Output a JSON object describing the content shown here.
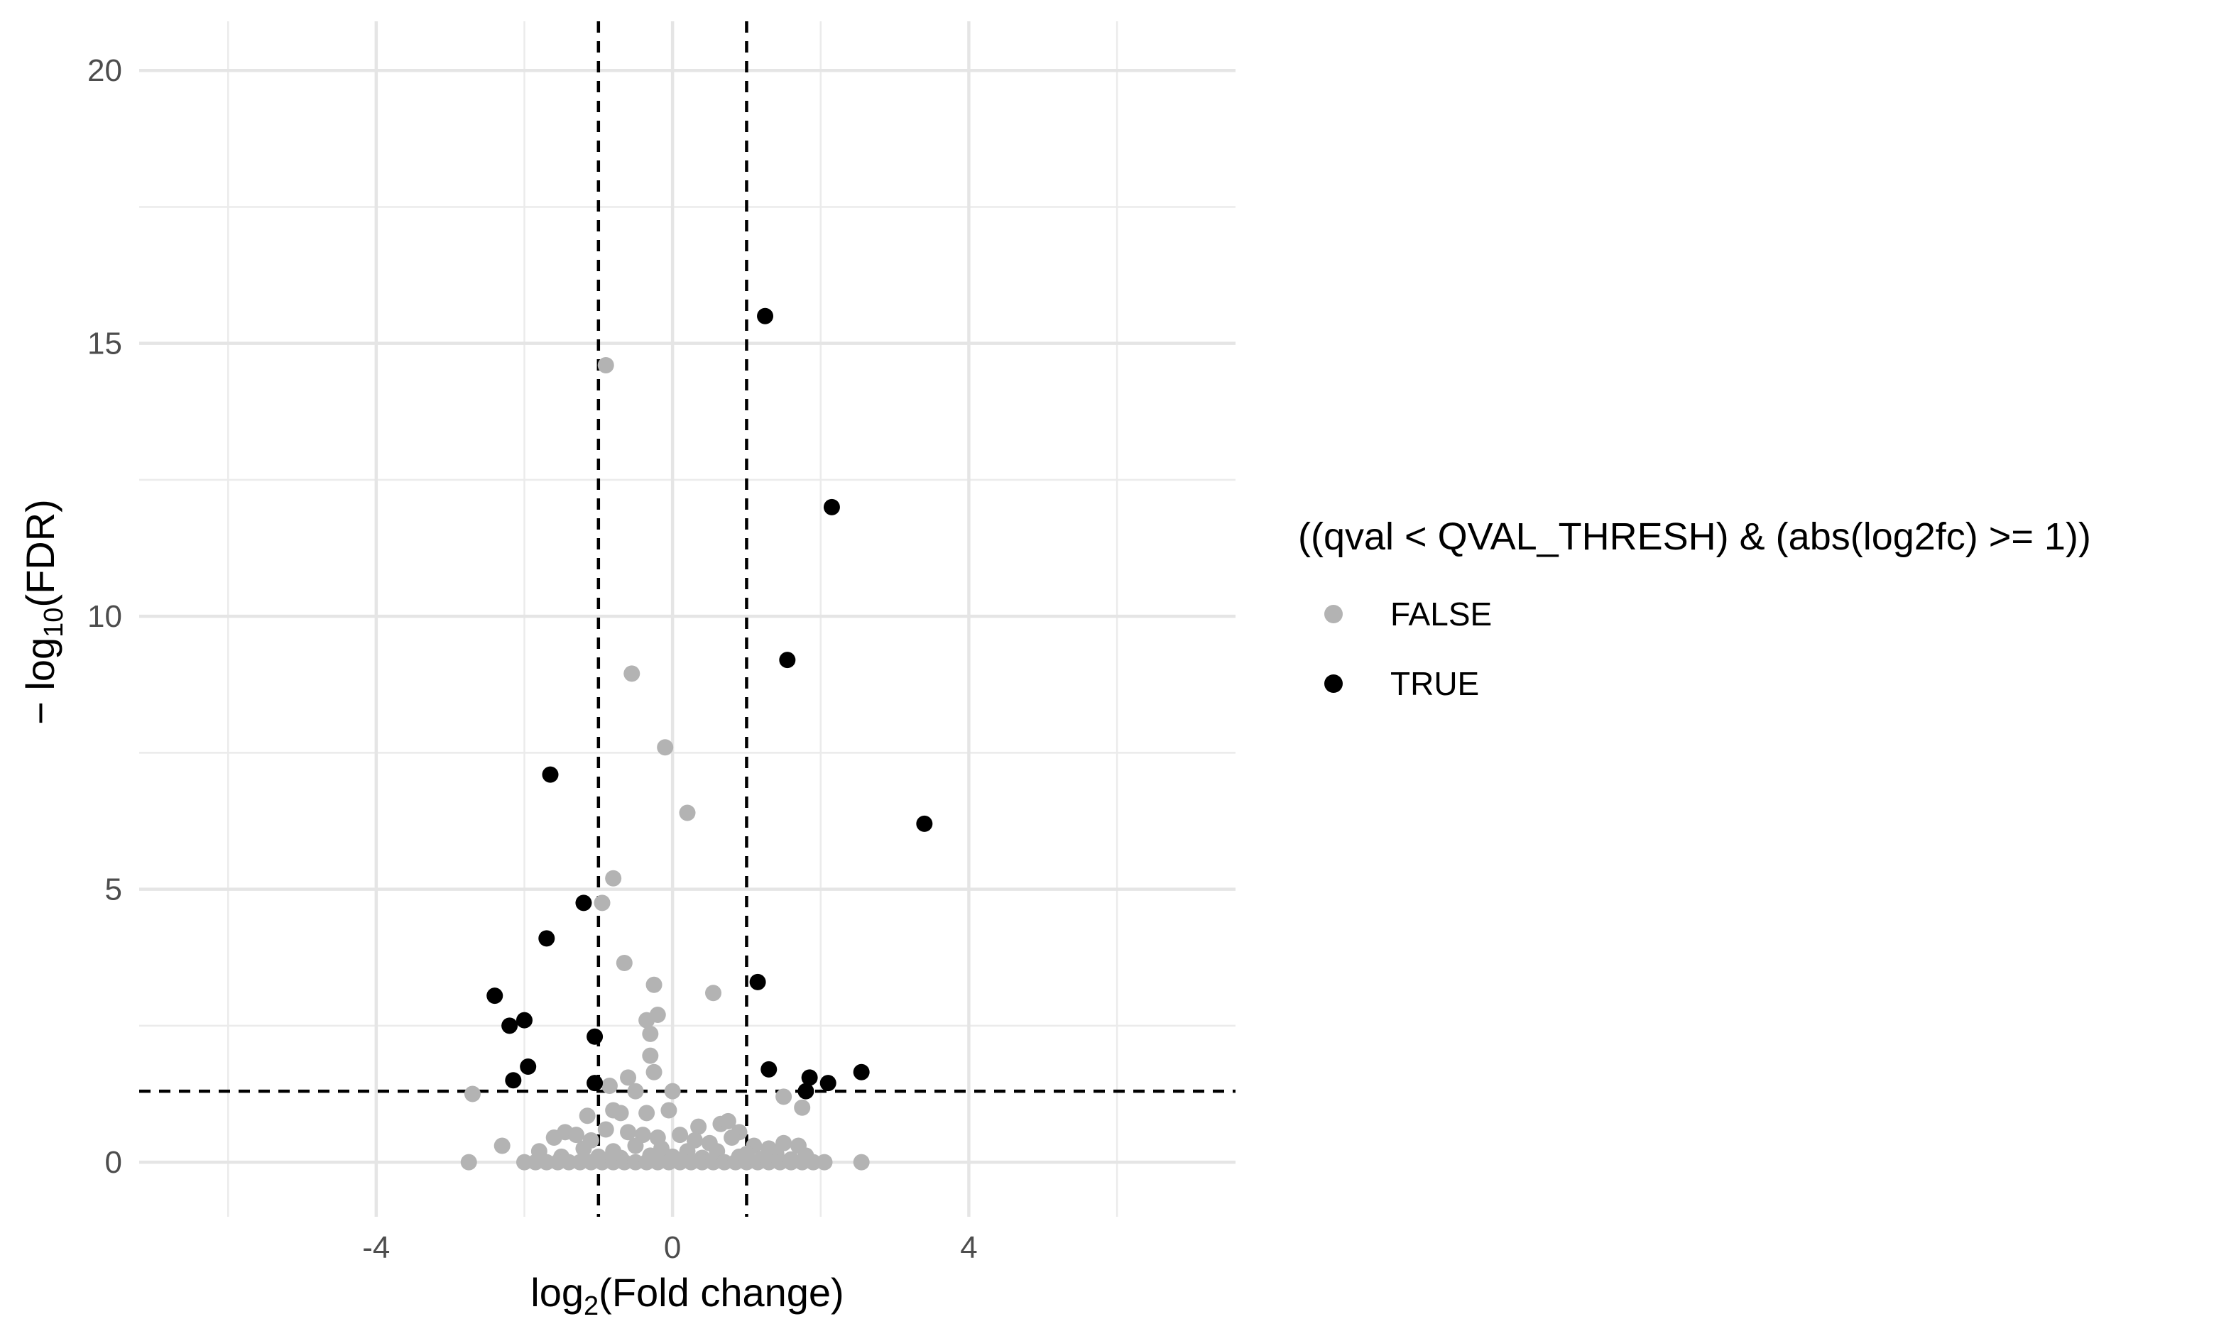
{
  "chart_data": {
    "type": "scatter",
    "xlabel": {
      "base": "log",
      "sub": "2",
      "rest": "(Fold change)"
    },
    "ylabel": {
      "prefix": "− log",
      "sub": "10",
      "rest": "(FDR)"
    },
    "xlim": [
      -7.2,
      7.6
    ],
    "ylim": [
      -1.0,
      20.9
    ],
    "x_ticks": [
      -4,
      0,
      4
    ],
    "x_tick_labels": [
      "-4",
      "0",
      "4"
    ],
    "x_minor_ticks": [
      -6,
      -2,
      2,
      6
    ],
    "y_ticks": [
      0,
      5,
      10,
      15,
      20
    ],
    "y_tick_labels": [
      "0",
      "5",
      "10",
      "15",
      "20"
    ],
    "y_minor_ticks": [
      2.5,
      7.5,
      12.5,
      17.5
    ],
    "grid": true,
    "threshold_lines": {
      "vertical": [
        -1,
        1
      ],
      "horizontal": [
        1.3
      ]
    },
    "legend": {
      "title": "((qval < QVAL_THRESH) & (abs(log2fc) >= 1))",
      "placement": "right",
      "entries": [
        {
          "label": "FALSE",
          "color": "#b3b3b3"
        },
        {
          "label": "TRUE",
          "color": "#000000"
        }
      ]
    },
    "series": [
      {
        "name": "FALSE",
        "color": "#b3b3b3",
        "points": [
          [
            -0.9,
            14.6
          ],
          [
            -0.55,
            8.95
          ],
          [
            -0.1,
            7.6
          ],
          [
            0.2,
            6.4
          ],
          [
            -0.8,
            5.2
          ],
          [
            -0.95,
            4.75
          ],
          [
            -0.65,
            3.65
          ],
          [
            -0.25,
            3.25
          ],
          [
            0.55,
            3.1
          ],
          [
            -0.2,
            2.7
          ],
          [
            -0.35,
            2.6
          ],
          [
            -0.3,
            2.35
          ],
          [
            -0.3,
            1.95
          ],
          [
            -0.25,
            1.65
          ],
          [
            -0.6,
            1.55
          ],
          [
            -0.85,
            1.4
          ],
          [
            -0.5,
            1.3
          ],
          [
            0.0,
            1.3
          ],
          [
            -2.7,
            1.25
          ],
          [
            1.5,
            1.2
          ],
          [
            1.75,
            1.0
          ],
          [
            -0.8,
            0.95
          ],
          [
            -0.7,
            0.9
          ],
          [
            -1.15,
            0.85
          ],
          [
            -0.35,
            0.9
          ],
          [
            -0.05,
            0.95
          ],
          [
            0.35,
            0.65
          ],
          [
            0.65,
            0.7
          ],
          [
            0.75,
            0.75
          ],
          [
            0.9,
            0.55
          ],
          [
            -1.6,
            0.45
          ],
          [
            -1.45,
            0.55
          ],
          [
            -1.3,
            0.5
          ],
          [
            -1.1,
            0.4
          ],
          [
            -0.9,
            0.6
          ],
          [
            -0.6,
            0.55
          ],
          [
            -0.4,
            0.5
          ],
          [
            -0.2,
            0.45
          ],
          [
            0.1,
            0.5
          ],
          [
            0.3,
            0.4
          ],
          [
            0.5,
            0.35
          ],
          [
            0.8,
            0.45
          ],
          [
            1.1,
            0.3
          ],
          [
            1.3,
            0.25
          ],
          [
            1.5,
            0.35
          ],
          [
            1.7,
            0.3
          ],
          [
            -2.3,
            0.3
          ],
          [
            -1.8,
            0.2
          ],
          [
            -1.2,
            0.25
          ],
          [
            -0.8,
            0.2
          ],
          [
            -0.5,
            0.3
          ],
          [
            -0.15,
            0.25
          ],
          [
            0.2,
            0.2
          ],
          [
            0.6,
            0.2
          ],
          [
            1.0,
            0.15
          ],
          [
            1.4,
            0.15
          ],
          [
            1.8,
            0.12
          ],
          [
            -1.5,
            0.1
          ],
          [
            -1.0,
            0.1
          ],
          [
            -0.7,
            0.08
          ],
          [
            -0.3,
            0.12
          ],
          [
            0.0,
            0.1
          ],
          [
            0.4,
            0.08
          ],
          [
            0.9,
            0.1
          ],
          [
            1.2,
            0.06
          ],
          [
            1.6,
            0.05
          ],
          [
            -2.75,
            0.0
          ],
          [
            -2.0,
            0.0
          ],
          [
            -1.85,
            0.0
          ],
          [
            -1.7,
            0.0
          ],
          [
            -1.55,
            0.0
          ],
          [
            -1.4,
            0.0
          ],
          [
            -1.25,
            0.0
          ],
          [
            -1.1,
            0.0
          ],
          [
            -0.95,
            0.0
          ],
          [
            -0.8,
            0.0
          ],
          [
            -0.65,
            0.0
          ],
          [
            -0.5,
            0.0
          ],
          [
            -0.35,
            0.0
          ],
          [
            -0.2,
            0.0
          ],
          [
            -0.05,
            0.0
          ],
          [
            0.1,
            0.0
          ],
          [
            0.25,
            0.0
          ],
          [
            0.4,
            0.0
          ],
          [
            0.55,
            0.0
          ],
          [
            0.7,
            0.0
          ],
          [
            0.85,
            0.0
          ],
          [
            1.0,
            0.0
          ],
          [
            1.15,
            0.0
          ],
          [
            1.3,
            0.0
          ],
          [
            1.45,
            0.0
          ],
          [
            1.6,
            0.0
          ],
          [
            1.75,
            0.0
          ],
          [
            1.9,
            0.0
          ],
          [
            2.05,
            0.0
          ],
          [
            2.55,
            0.0
          ]
        ]
      },
      {
        "name": "TRUE",
        "color": "#000000",
        "points": [
          [
            1.25,
            15.5
          ],
          [
            2.15,
            12.0
          ],
          [
            1.55,
            9.2
          ],
          [
            3.4,
            6.2
          ],
          [
            -1.65,
            7.1
          ],
          [
            -1.2,
            4.75
          ],
          [
            -1.7,
            4.1
          ],
          [
            1.15,
            3.3
          ],
          [
            -2.4,
            3.05
          ],
          [
            -2.0,
            2.6
          ],
          [
            -2.2,
            2.5
          ],
          [
            -1.05,
            2.3
          ],
          [
            -1.95,
            1.75
          ],
          [
            1.3,
            1.7
          ],
          [
            2.55,
            1.65
          ],
          [
            1.85,
            1.55
          ],
          [
            -2.15,
            1.5
          ],
          [
            -1.05,
            1.45
          ],
          [
            2.1,
            1.45
          ],
          [
            1.8,
            1.3
          ]
        ]
      }
    ]
  }
}
